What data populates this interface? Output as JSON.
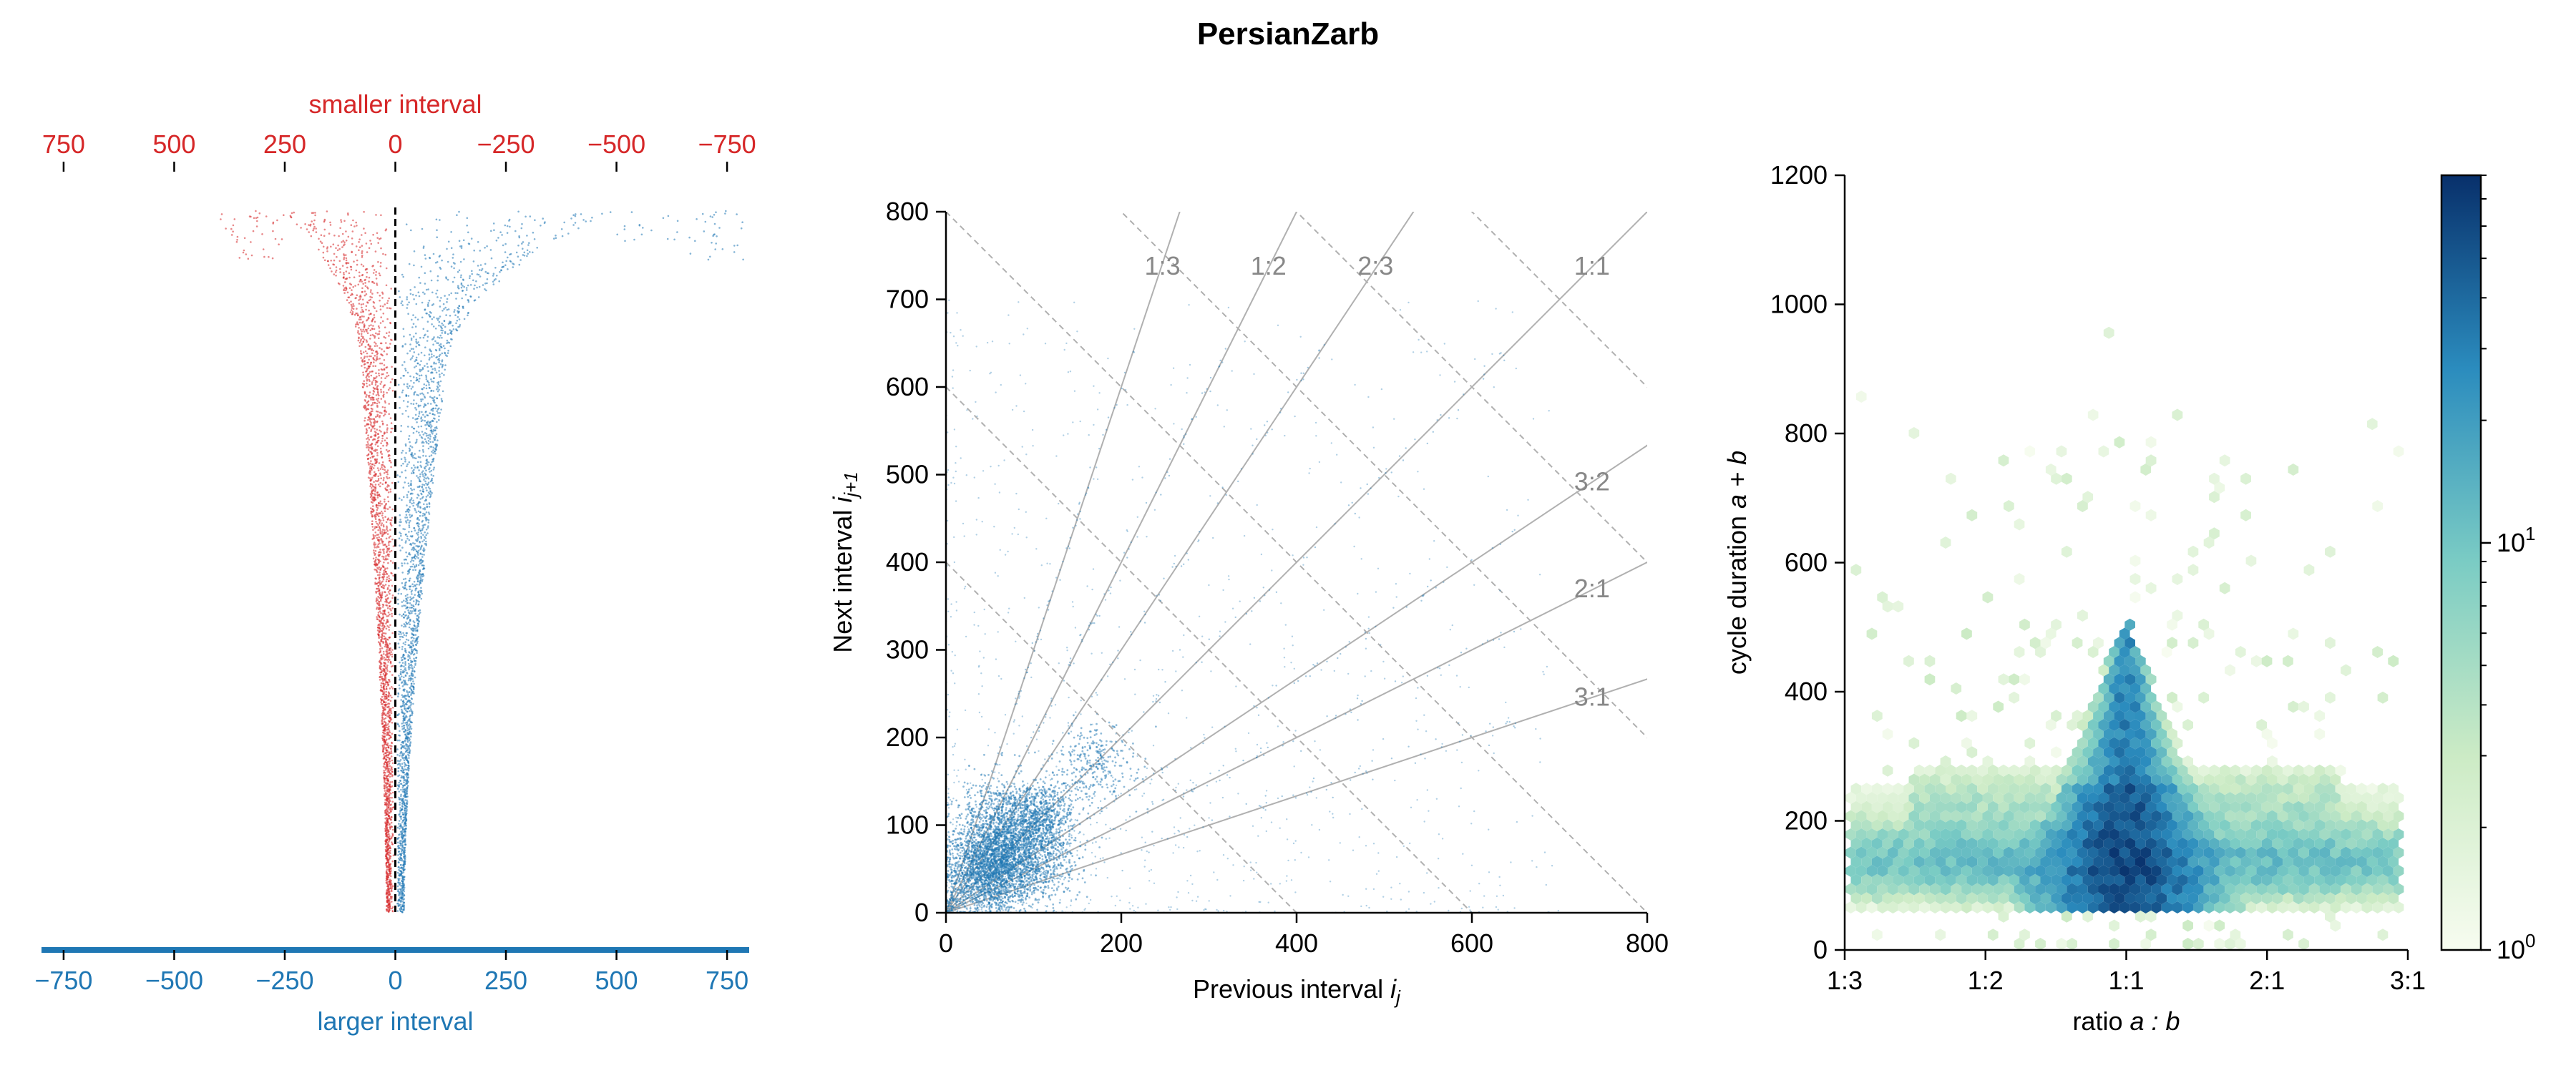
{
  "figure": {
    "title": "PersianZarb"
  },
  "colors": {
    "red": "#d62728",
    "blue": "#1f77b4",
    "ratio_line": "#b0b0b0",
    "ratio_text": "#888888",
    "axis": "#000000"
  },
  "chart_data": [
    {
      "id": "interval-spread",
      "type": "scatter",
      "top_axis": {
        "label": "smaller interval",
        "ticks": [
          750,
          500,
          250,
          0,
          -250,
          -500,
          -750
        ],
        "tick_labels": [
          "750",
          "500",
          "250",
          "0",
          "−250",
          "−500",
          "−750"
        ],
        "range": [
          800,
          -800
        ],
        "color": "#d62728"
      },
      "bottom_axis": {
        "label": "larger interval",
        "ticks": [
          -750,
          -500,
          -250,
          0,
          250,
          500,
          750
        ],
        "tick_labels": [
          "−750",
          "−500",
          "−250",
          "0",
          "250",
          "500",
          "750"
        ],
        "range": [
          -800,
          800
        ],
        "color": "#1f77b4"
      },
      "series": [
        {
          "color": "#d62728",
          "side": "left",
          "envelope": {
            "x_at_bottom": -20,
            "x_at_mid": -75,
            "x_at_top": -250,
            "max_extent": -400
          }
        },
        {
          "color": "#1f77b4",
          "side": "right",
          "envelope": {
            "x_at_bottom": 20,
            "x_at_mid": 110,
            "x_at_top": 500,
            "max_extent": 800
          }
        }
      ],
      "zero_line": "dashed"
    },
    {
      "id": "return-map",
      "type": "scatter",
      "xlabel": "Previous interval",
      "xlabel_var": "i",
      "xlabel_sub": "j",
      "ylabel": "Next interval",
      "ylabel_var": "i",
      "ylabel_sub": "j+1",
      "xlim": [
        0,
        800
      ],
      "ylim": [
        0,
        800
      ],
      "xticks": [
        0,
        200,
        400,
        600,
        800
      ],
      "yticks": [
        0,
        100,
        200,
        300,
        400,
        500,
        600,
        700,
        800
      ],
      "xtick_labels": [
        "0",
        "200",
        "400",
        "600",
        "800"
      ],
      "ytick_labels": [
        "0",
        "100",
        "200",
        "300",
        "400",
        "500",
        "600",
        "700",
        "800"
      ],
      "point_color": "#1f77b4",
      "clusters": [
        {
          "x": 50,
          "y": 50,
          "spread": 25,
          "weight": 0.35
        },
        {
          "x": 80,
          "y": 85,
          "spread": 28,
          "weight": 0.18
        },
        {
          "x": 110,
          "y": 115,
          "spread": 18,
          "weight": 0.08
        },
        {
          "x": 60,
          "y": 110,
          "spread": 22,
          "weight": 0.07
        },
        {
          "x": 110,
          "y": 60,
          "spread": 22,
          "weight": 0.07
        },
        {
          "x": 170,
          "y": 170,
          "spread": 22,
          "weight": 0.05
        }
      ],
      "ratio_lines": [
        {
          "label": "1:3",
          "slope": 3,
          "label_x": 247,
          "label_y": 738
        },
        {
          "label": "1:2",
          "slope": 2,
          "label_x": 368,
          "label_y": 738
        },
        {
          "label": "2:3",
          "slope": 1.5,
          "label_x": 490,
          "label_y": 738
        },
        {
          "label": "1:1",
          "slope": 1,
          "label_x": 737,
          "label_y": 738
        },
        {
          "label": "3:2",
          "slope": 0.6667,
          "label_x": 737,
          "label_y": 492
        },
        {
          "label": "2:1",
          "slope": 0.5,
          "label_x": 737,
          "label_y": 370
        },
        {
          "label": "3:1",
          "slope": 0.3333,
          "label_x": 737,
          "label_y": 246
        }
      ],
      "duration_lines": [
        400,
        600,
        800,
        1000,
        1200,
        1400
      ]
    },
    {
      "id": "ratio-hexbin",
      "type": "heatmap",
      "xlabel": "ratio",
      "xlabel_math": "a : b",
      "ylabel": "cycle duration",
      "ylabel_math": "a + b",
      "x_categories": [
        "1:3",
        "1:2",
        "1:1",
        "2:1",
        "3:1"
      ],
      "ylim": [
        0,
        1200
      ],
      "yticks": [
        0,
        200,
        400,
        600,
        800,
        1000,
        1200
      ],
      "ytick_labels": [
        "0",
        "200",
        "400",
        "600",
        "800",
        "1000",
        "1200"
      ],
      "colorbar": {
        "scale": "log",
        "range": [
          1,
          80
        ],
        "tick_base": "10",
        "tick_exponents": [
          "0",
          "1"
        ],
        "tick_values": [
          1,
          10
        ],
        "colors": [
          "#f7fcf0",
          "#ccebc5",
          "#7bccc4",
          "#2b8cbe",
          "#08306b"
        ]
      },
      "density_features": [
        {
          "name": "main band",
          "x_range": [
            -1,
            1
          ],
          "y_center": 130,
          "y_width": 70,
          "peak": 30
        },
        {
          "name": "center spike",
          "x": 0,
          "y_range": [
            80,
            500
          ],
          "peak": 70
        },
        {
          "name": "sparse tail",
          "y_range": [
            300,
            1000
          ],
          "peak": 2
        }
      ]
    }
  ]
}
